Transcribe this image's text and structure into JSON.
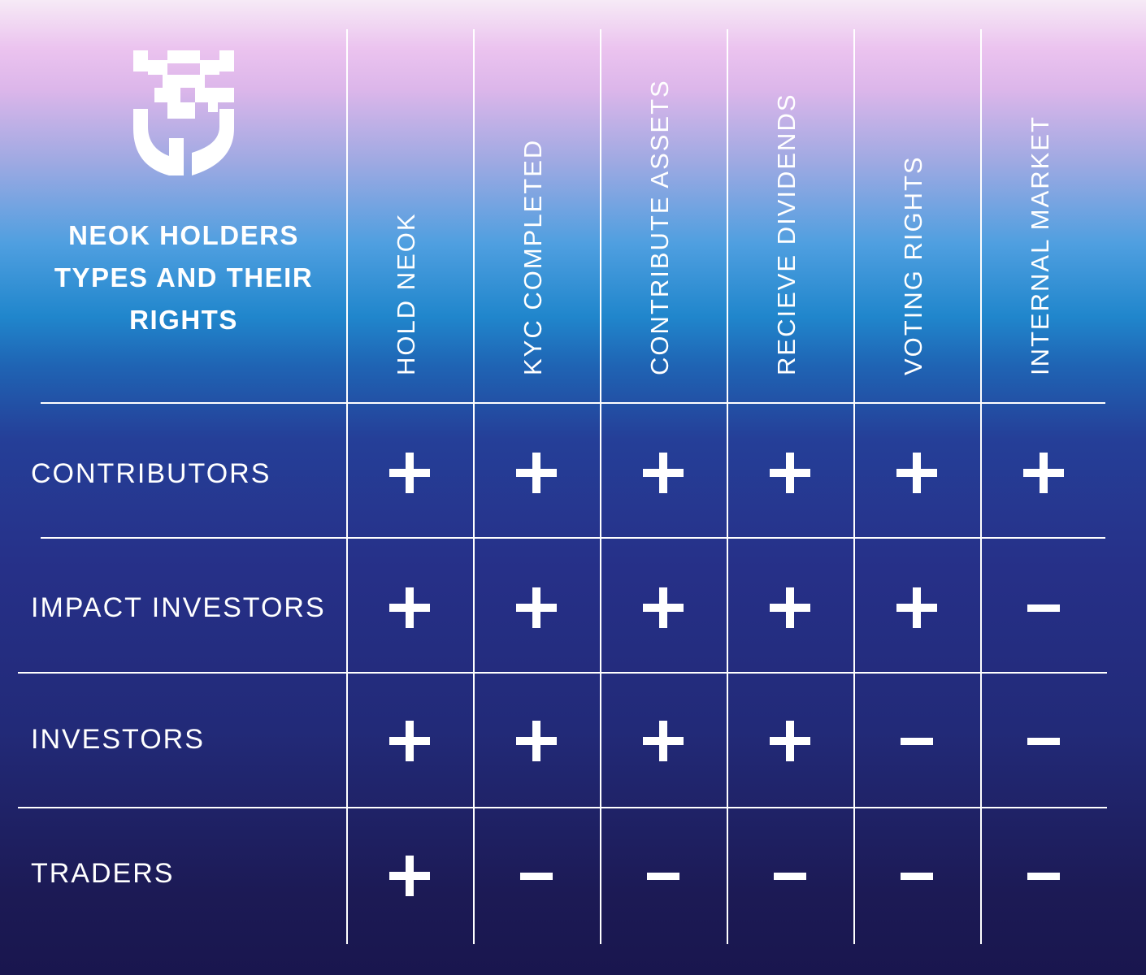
{
  "title_lines": [
    "NEOK HOLDERS",
    "TYPES AND THEIR",
    "RIGHTS"
  ],
  "logo": {
    "name": "neok-shield-logo",
    "color": "#ffffff"
  },
  "columns": [
    "HOLD NEOK",
    "KYC COMPLETED",
    "CONTRIBUTE ASSETS",
    "RECIEVE DIVIDENDS",
    "VOTING RIGHTS",
    "INTERNAL MARKET"
  ],
  "rows": [
    {
      "label": "CONTRIBUTORS",
      "values": [
        "+",
        "+",
        "+",
        "+",
        "+",
        "+"
      ]
    },
    {
      "label": "IMPACT INVESTORS",
      "values": [
        "+",
        "+",
        "+",
        "+",
        "+",
        "−"
      ]
    },
    {
      "label": "INVESTORS",
      "values": [
        "+",
        "+",
        "+",
        "+",
        "−",
        "−"
      ]
    },
    {
      "label": "TRADERS",
      "values": [
        "+",
        "−",
        "−",
        "−",
        "−",
        "−"
      ]
    }
  ],
  "colors": {
    "text": "#ffffff",
    "grid": "#ffffff",
    "gradient_top": "#ebc3ef",
    "gradient_mid": "#2086cc",
    "gradient_bottom": "#19164e"
  }
}
